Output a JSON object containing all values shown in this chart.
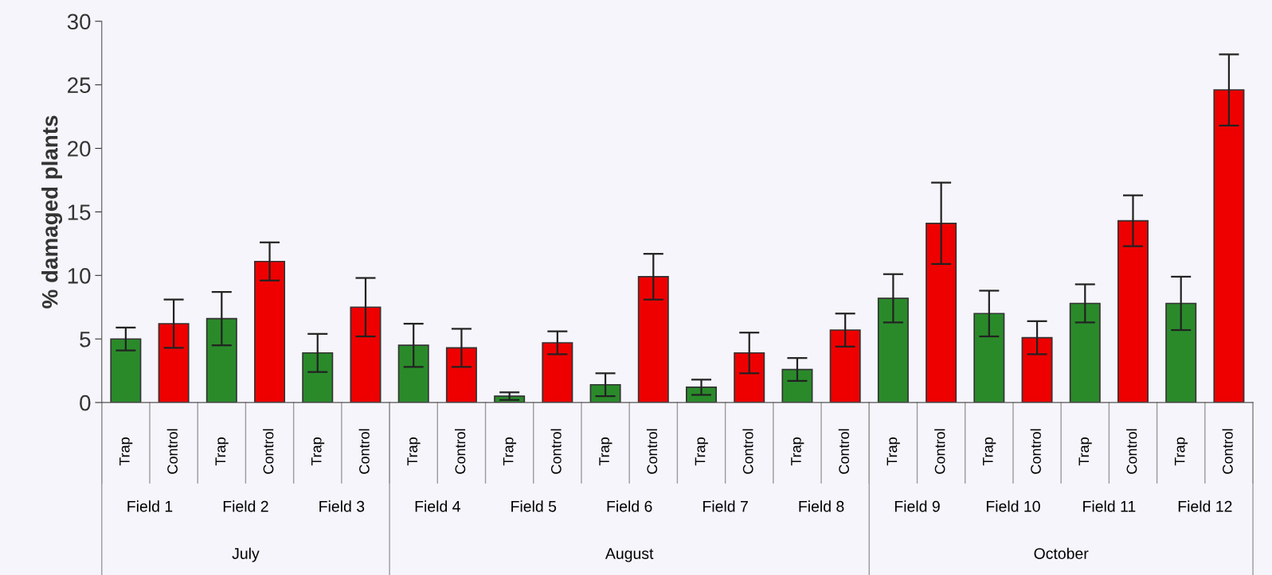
{
  "chart_data": {
    "type": "bar",
    "ylabel": "% damaged plants",
    "categories": [
      "Field 1",
      "Field 2",
      "Field 3",
      "Field 4",
      "Field 5",
      "Field 6",
      "Field 7",
      "Field 8",
      "Field 9",
      "Field 10",
      "Field 11",
      "Field 12"
    ],
    "series": [
      {
        "name": "Trap",
        "color": "#2a8a2a",
        "values": [
          5.0,
          6.6,
          3.9,
          4.5,
          0.5,
          1.4,
          1.2,
          2.6,
          8.2,
          7.0,
          7.8,
          7.8
        ],
        "errors": [
          0.9,
          2.1,
          1.5,
          1.7,
          0.3,
          0.9,
          0.6,
          0.9,
          1.9,
          1.8,
          1.5,
          2.1
        ]
      },
      {
        "name": "Control",
        "color": "#ee0000",
        "values": [
          6.2,
          11.1,
          7.5,
          4.3,
          4.7,
          9.9,
          3.9,
          5.7,
          14.1,
          5.1,
          14.3,
          24.6
        ],
        "errors": [
          1.9,
          1.5,
          2.3,
          1.5,
          0.9,
          1.8,
          1.6,
          1.3,
          3.2,
          1.3,
          2.0,
          2.8
        ]
      }
    ],
    "annotations": [
      "July",
      "August",
      "October"
    ],
    "ylim": [
      0,
      30
    ],
    "yticks": [
      0,
      5,
      10,
      15,
      20,
      25,
      30
    ],
    "grid": false,
    "legend": false
  }
}
